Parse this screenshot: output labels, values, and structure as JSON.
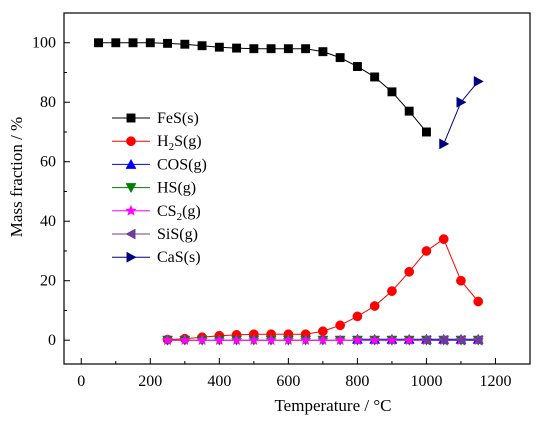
{
  "chart_data": {
    "type": "line",
    "title": "",
    "xlabel": "Temperature / °C",
    "ylabel": "Mass fraction / %",
    "xlim": [
      -50,
      1300
    ],
    "ylim": [
      -8,
      110
    ],
    "xticks": [
      0,
      200,
      400,
      600,
      800,
      1000,
      1200
    ],
    "yticks": [
      0,
      20,
      40,
      60,
      80,
      100
    ],
    "grid": false,
    "legend": "center-left",
    "series": [
      {
        "name": "FeS(s)",
        "sub": "",
        "tail": "(s)",
        "base": "FeS",
        "color": "#000000",
        "marker": "square",
        "x": [
          50,
          100,
          150,
          200,
          250,
          300,
          350,
          400,
          450,
          500,
          550,
          600,
          650,
          700,
          750,
          800,
          850,
          900,
          950,
          1000
        ],
        "y": [
          100,
          100,
          100,
          100,
          99.8,
          99.5,
          99.0,
          98.5,
          98.2,
          98.0,
          98.0,
          98.0,
          98.0,
          97.0,
          95.0,
          92.0,
          88.5,
          83.5,
          77.0,
          70.0
        ]
      },
      {
        "name": "H2S(g)",
        "base": "H",
        "sub": "2",
        "tail": "S(g)",
        "color": "#ff0000",
        "marker": "circle",
        "x": [
          250,
          300,
          350,
          400,
          450,
          500,
          550,
          600,
          650,
          700,
          750,
          800,
          850,
          900,
          950,
          1000,
          1050,
          1100,
          1150
        ],
        "y": [
          0.2,
          0.5,
          1.0,
          1.5,
          1.8,
          2.0,
          2.0,
          2.0,
          2.0,
          3.0,
          5.0,
          8.0,
          11.5,
          16.5,
          23.0,
          30.0,
          34.0,
          20.0,
          13.0
        ]
      },
      {
        "name": "COS(g)",
        "base": "COS(g)",
        "sub": "",
        "tail": "",
        "color": "#0000ff",
        "marker": "triangle-up",
        "x": [
          800,
          850,
          900,
          950,
          1000,
          1050,
          1100,
          1150
        ],
        "y": [
          0.3,
          0.3,
          0.3,
          0.3,
          0.3,
          0.3,
          0.3,
          0.3
        ]
      },
      {
        "name": "HS(g)",
        "base": "HS(g)",
        "sub": "",
        "tail": "",
        "color": "#008000",
        "marker": "triangle-down",
        "x": [
          250,
          300,
          350,
          400,
          450,
          500,
          550,
          600,
          650,
          700,
          750,
          800,
          850,
          900,
          950,
          1000,
          1050,
          1100,
          1150
        ],
        "y": [
          0,
          0,
          0,
          0,
          0,
          0,
          0,
          0,
          0,
          0,
          0,
          0,
          0,
          0,
          0,
          0,
          0,
          0,
          0
        ]
      },
      {
        "name": "CS2(g)",
        "base": "CS",
        "sub": "2",
        "tail": "(g)",
        "color": "#ff00ff",
        "marker": "star",
        "x": [
          250,
          300,
          350,
          400,
          450,
          500,
          550,
          600,
          650,
          700,
          750,
          800,
          850,
          900,
          950,
          1000,
          1050,
          1100,
          1150
        ],
        "y": [
          0,
          0,
          0,
          0,
          0,
          0,
          0,
          0,
          0,
          0,
          0,
          0,
          0,
          0,
          0,
          0,
          0,
          0,
          0
        ]
      },
      {
        "name": "SiS(g)",
        "base": "SiS(g)",
        "sub": "",
        "tail": "",
        "color": "#6a3d9a",
        "marker": "triangle-left",
        "x": [
          1000,
          1050,
          1100,
          1150
        ],
        "y": [
          0,
          0,
          0,
          0
        ]
      },
      {
        "name": "CaS(s)",
        "base": "CaS(s)",
        "sub": "",
        "tail": "",
        "color": "#000080",
        "marker": "triangle-right",
        "x": [
          1050,
          1100,
          1150
        ],
        "y": [
          66,
          80,
          87
        ]
      }
    ]
  }
}
